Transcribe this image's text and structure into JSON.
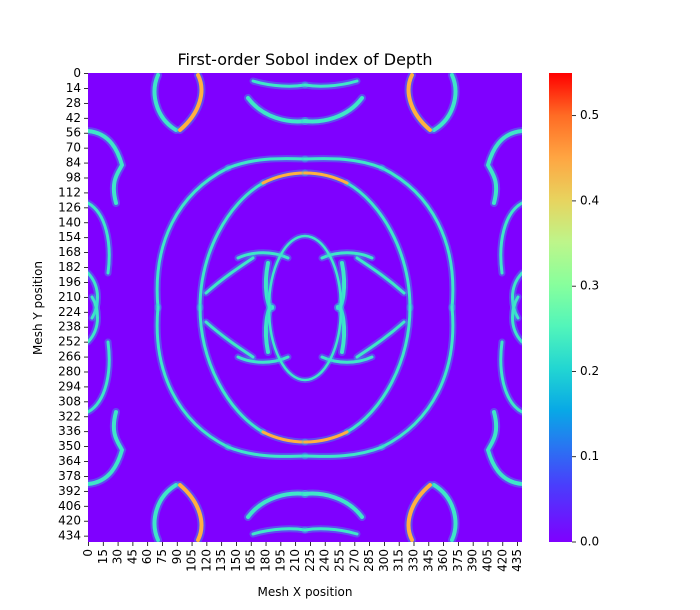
{
  "chart_data": {
    "type": "heatmap",
    "title": "First-order Sobol index of Depth",
    "xlabel": "Mesh X position",
    "ylabel": "Mesh Y position",
    "grid_size": 440,
    "x_tick_labels": [
      "0",
      "15",
      "30",
      "45",
      "60",
      "75",
      "90",
      "105",
      "120",
      "135",
      "150",
      "165",
      "180",
      "195",
      "210",
      "225",
      "240",
      "255",
      "270",
      "285",
      "300",
      "315",
      "330",
      "345",
      "360",
      "375",
      "390",
      "405",
      "420",
      "435"
    ],
    "y_tick_labels": [
      "0",
      "14",
      "28",
      "42",
      "56",
      "70",
      "84",
      "98",
      "112",
      "126",
      "140",
      "154",
      "168",
      "182",
      "196",
      "210",
      "224",
      "238",
      "252",
      "266",
      "280",
      "294",
      "308",
      "322",
      "336",
      "350",
      "364",
      "378",
      "392",
      "406",
      "420",
      "434"
    ],
    "colorbar": {
      "colormap": "rainbow",
      "range": [
        0.0,
        0.55
      ],
      "tick_labels": [
        "0.0",
        "0.1",
        "0.2",
        "0.3",
        "0.4",
        "0.5"
      ]
    },
    "description_of_pattern": "Symmetric pattern of thin high-value ridges on a near-zero background"
  }
}
